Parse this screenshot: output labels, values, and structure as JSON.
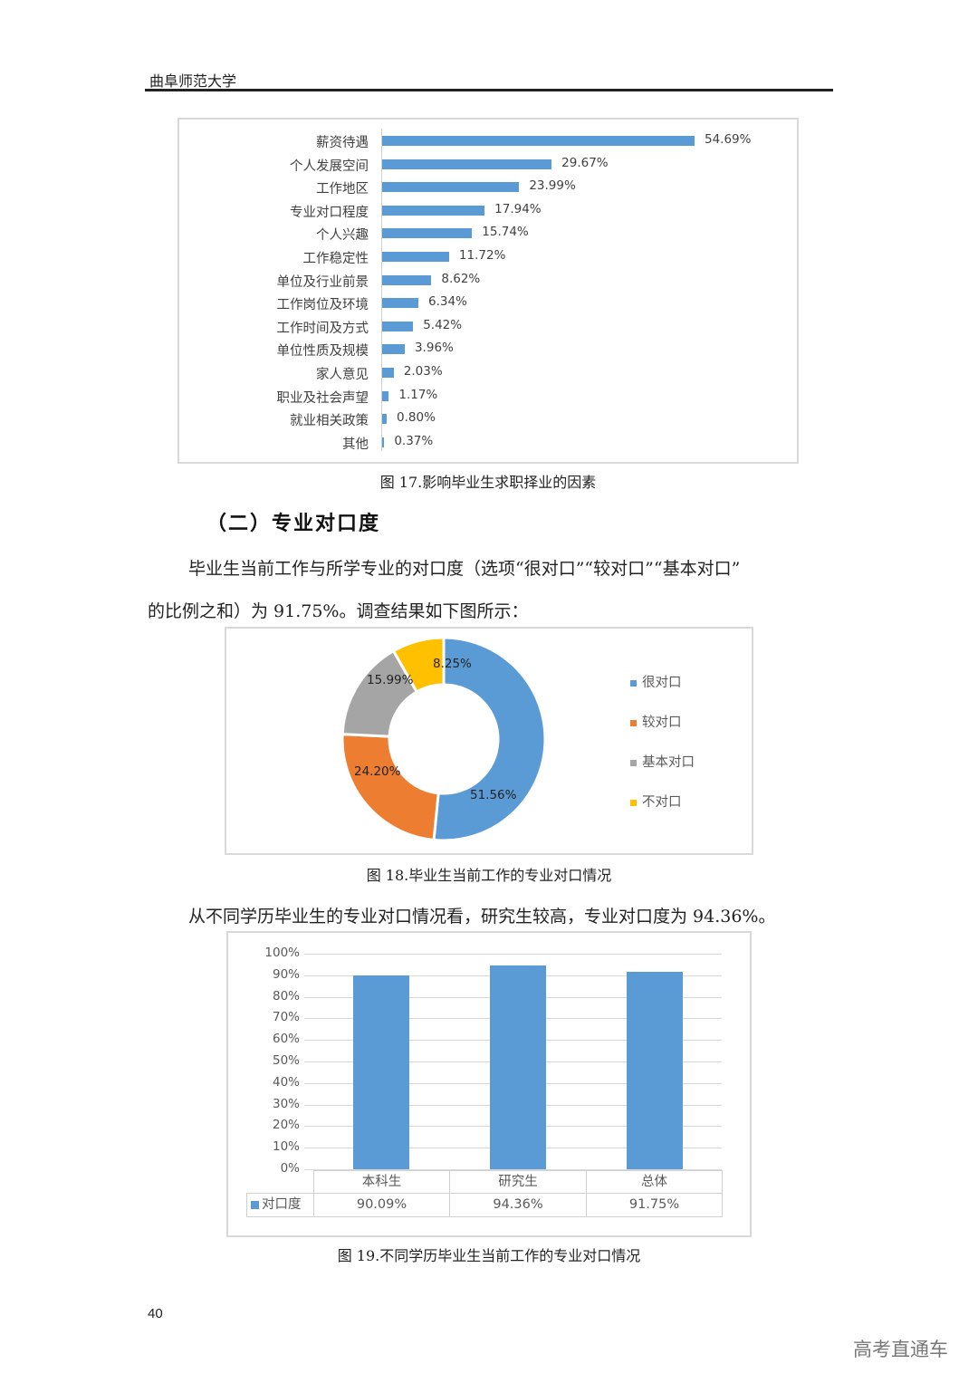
{
  "header": {
    "title": "曲阜师范大学"
  },
  "figure17": {
    "caption": "图 17.影响毕业生求职择业的因素",
    "bars": [
      {
        "label": "薪资待遇",
        "value": 54.69,
        "text": "54.69%"
      },
      {
        "label": "个人发展空间",
        "value": 29.67,
        "text": "29.67%"
      },
      {
        "label": "工作地区",
        "value": 23.99,
        "text": "23.99%"
      },
      {
        "label": "专业对口程度",
        "value": 17.94,
        "text": "17.94%"
      },
      {
        "label": "个人兴趣",
        "value": 15.74,
        "text": "15.74%"
      },
      {
        "label": "工作稳定性",
        "value": 11.72,
        "text": "11.72%"
      },
      {
        "label": "单位及行业前景",
        "value": 8.62,
        "text": "8.62%"
      },
      {
        "label": "工作岗位及环境",
        "value": 6.34,
        "text": "6.34%"
      },
      {
        "label": "工作时间及方式",
        "value": 5.42,
        "text": "5.42%"
      },
      {
        "label": "单位性质及规模",
        "value": 3.96,
        "text": "3.96%"
      },
      {
        "label": "家人意见",
        "value": 2.03,
        "text": "2.03%"
      },
      {
        "label": "职业及社会声望",
        "value": 1.17,
        "text": "1.17%"
      },
      {
        "label": "就业相关政策",
        "value": 0.8,
        "text": "0.80%"
      },
      {
        "label": "其他",
        "value": 0.37,
        "text": "0.37%"
      }
    ]
  },
  "section": {
    "heading": "（二）专业对口度",
    "para1_line1": "毕业生当前工作与所学专业的对口度（选项“很对口”“较对口”“基本对口”",
    "para1_line2": "的比例之和）为 91.75%。调查结果如下图所示：",
    "para2": "从不同学历毕业生的专业对口情况看，研究生较高，专业对口度为 94.36%。"
  },
  "figure18": {
    "caption": "图 18.毕业生当前工作的专业对口情况",
    "slices": [
      {
        "label": "很对口",
        "value": 51.56,
        "text": "51.56%",
        "color": "#5b9bd5"
      },
      {
        "label": "较对口",
        "value": 24.2,
        "text": "24.20%",
        "color": "#ed7d31"
      },
      {
        "label": "基本对口",
        "value": 15.99,
        "text": "15.99%",
        "color": "#a5a5a5"
      },
      {
        "label": "不对口",
        "value": 8.25,
        "text": "8.25%",
        "color": "#ffc000"
      }
    ]
  },
  "figure19": {
    "caption": "图 19.不同学历毕业生当前工作的专业对口情况",
    "yticks": [
      "100%",
      "90%",
      "80%",
      "70%",
      "60%",
      "50%",
      "40%",
      "30%",
      "20%",
      "10%",
      "0%"
    ],
    "series_name": "对口度",
    "categories": [
      "本科生",
      "研究生",
      "总体"
    ],
    "values": [
      90.09,
      94.36,
      91.75
    ],
    "value_texts": [
      "90.09%",
      "94.36%",
      "91.75%"
    ]
  },
  "footer": {
    "page_number": "40",
    "watermark": "高考直通车"
  },
  "chart_data": [
    {
      "type": "bar",
      "orientation": "horizontal",
      "title": "图 17.影响毕业生求职择业的因素",
      "categories": [
        "薪资待遇",
        "个人发展空间",
        "工作地区",
        "专业对口程度",
        "个人兴趣",
        "工作稳定性",
        "单位及行业前景",
        "工作岗位及环境",
        "工作时间及方式",
        "单位性质及规模",
        "家人意见",
        "职业及社会声望",
        "就业相关政策",
        "其他"
      ],
      "values": [
        54.69,
        29.67,
        23.99,
        17.94,
        15.74,
        11.72,
        8.62,
        6.34,
        5.42,
        3.96,
        2.03,
        1.17,
        0.8,
        0.37
      ],
      "unit": "%",
      "data_labels": true,
      "grid": false,
      "legend": "none"
    },
    {
      "type": "pie",
      "variant": "donut",
      "title": "图 18.毕业生当前工作的专业对口情况",
      "categories": [
        "很对口",
        "较对口",
        "基本对口",
        "不对口"
      ],
      "values": [
        51.56,
        24.2,
        15.99,
        8.25
      ],
      "colors": [
        "#5b9bd5",
        "#ed7d31",
        "#a5a5a5",
        "#ffc000"
      ],
      "unit": "%",
      "legend": "right"
    },
    {
      "type": "bar",
      "orientation": "vertical",
      "title": "图 19.不同学历毕业生当前工作的专业对口情况",
      "categories": [
        "本科生",
        "研究生",
        "总体"
      ],
      "series": [
        {
          "name": "对口度",
          "values": [
            90.09,
            94.36,
            91.75
          ]
        }
      ],
      "ylim": [
        0,
        100
      ],
      "yticks": [
        "0%",
        "10%",
        "20%",
        "30%",
        "40%",
        "50%",
        "60%",
        "70%",
        "80%",
        "90%",
        "100%"
      ],
      "grid": true,
      "data_table": true,
      "legend": "data-table"
    }
  ]
}
